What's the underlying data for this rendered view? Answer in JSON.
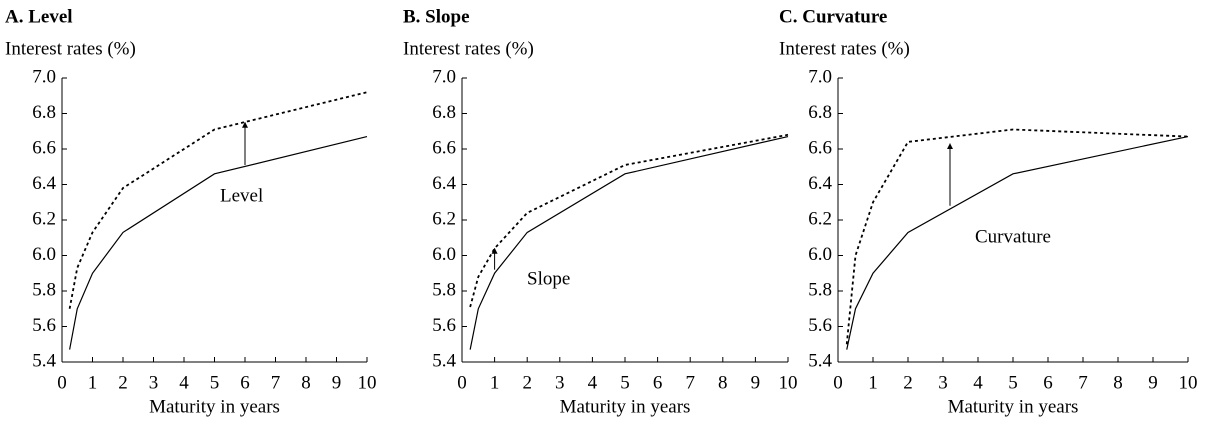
{
  "chart_data": [
    {
      "type": "line",
      "title": "A. Level",
      "y_label": "Interest rates (%)",
      "x_label": "Maturity in years",
      "annotation": "Level",
      "x": [
        0.25,
        0.5,
        1,
        2,
        5,
        10
      ],
      "series": [
        {
          "color": "#000000",
          "dash": false,
          "values": [
            5.47,
            5.7,
            5.9,
            6.13,
            6.46,
            6.67
          ]
        },
        {
          "color": "#000000",
          "dash": true,
          "values": [
            5.7,
            5.93,
            6.13,
            6.38,
            6.71,
            6.92
          ]
        }
      ],
      "xlim": [
        0,
        10
      ],
      "xticks": [
        0,
        1,
        2,
        3,
        4,
        5,
        6,
        7,
        8,
        9,
        10
      ],
      "ylim": [
        5.4,
        7
      ],
      "yticks": [
        5.4,
        5.6,
        5.8,
        {
          "value": 6,
          "label": "6.0"
        },
        6.2,
        6.4,
        6.6,
        6.8,
        {
          "value": 7,
          "label": "7.0"
        }
      ]
    },
    {
      "type": "line",
      "title": "B. Slope",
      "y_label": "Interest rates (%)",
      "x_label": "Maturity in years",
      "annotation": "Slope",
      "x": [
        0.25,
        0.5,
        1,
        2,
        5,
        10
      ],
      "series": [
        {
          "color": "#000000",
          "dash": false,
          "values": [
            5.47,
            5.7,
            5.9,
            6.13,
            6.46,
            6.67
          ]
        },
        {
          "color": "#000000",
          "dash": true,
          "values": [
            5.71,
            5.88,
            6.04,
            6.24,
            6.51,
            6.68
          ]
        }
      ],
      "xlim": [
        0,
        10
      ],
      "xticks": [
        0,
        1,
        2,
        3,
        4,
        5,
        6,
        7,
        8,
        9,
        10
      ],
      "ylim": [
        5.4,
        7
      ],
      "yticks": [
        5.4,
        5.6,
        5.8,
        {
          "value": 6,
          "label": "6.0"
        },
        6.2,
        6.4,
        6.6,
        6.8,
        {
          "value": 7,
          "label": "7.0"
        }
      ]
    },
    {
      "type": "line",
      "title": "C. Curvature",
      "y_label": "Interest rates (%)",
      "x_label": "Maturity in years",
      "annotation": "Curvature",
      "x": [
        0.25,
        0.5,
        1,
        2,
        5,
        10
      ],
      "series": [
        {
          "color": "#000000",
          "dash": false,
          "values": [
            5.47,
            5.7,
            5.9,
            6.13,
            6.46,
            6.67
          ]
        },
        {
          "color": "#000000",
          "dash": true,
          "values": [
            5.5,
            6.0,
            6.3,
            6.64,
            6.71,
            6.67
          ]
        }
      ],
      "xlim": [
        0,
        10
      ],
      "xticks": [
        0,
        1,
        2,
        3,
        4,
        5,
        6,
        7,
        8,
        9,
        10
      ],
      "ylim": [
        5.4,
        7
      ],
      "yticks": [
        5.4,
        5.6,
        5.8,
        {
          "value": 6,
          "label": "6.0"
        },
        6.2,
        6.4,
        6.6,
        6.8,
        {
          "value": 7,
          "label": "7.0"
        }
      ]
    }
  ]
}
